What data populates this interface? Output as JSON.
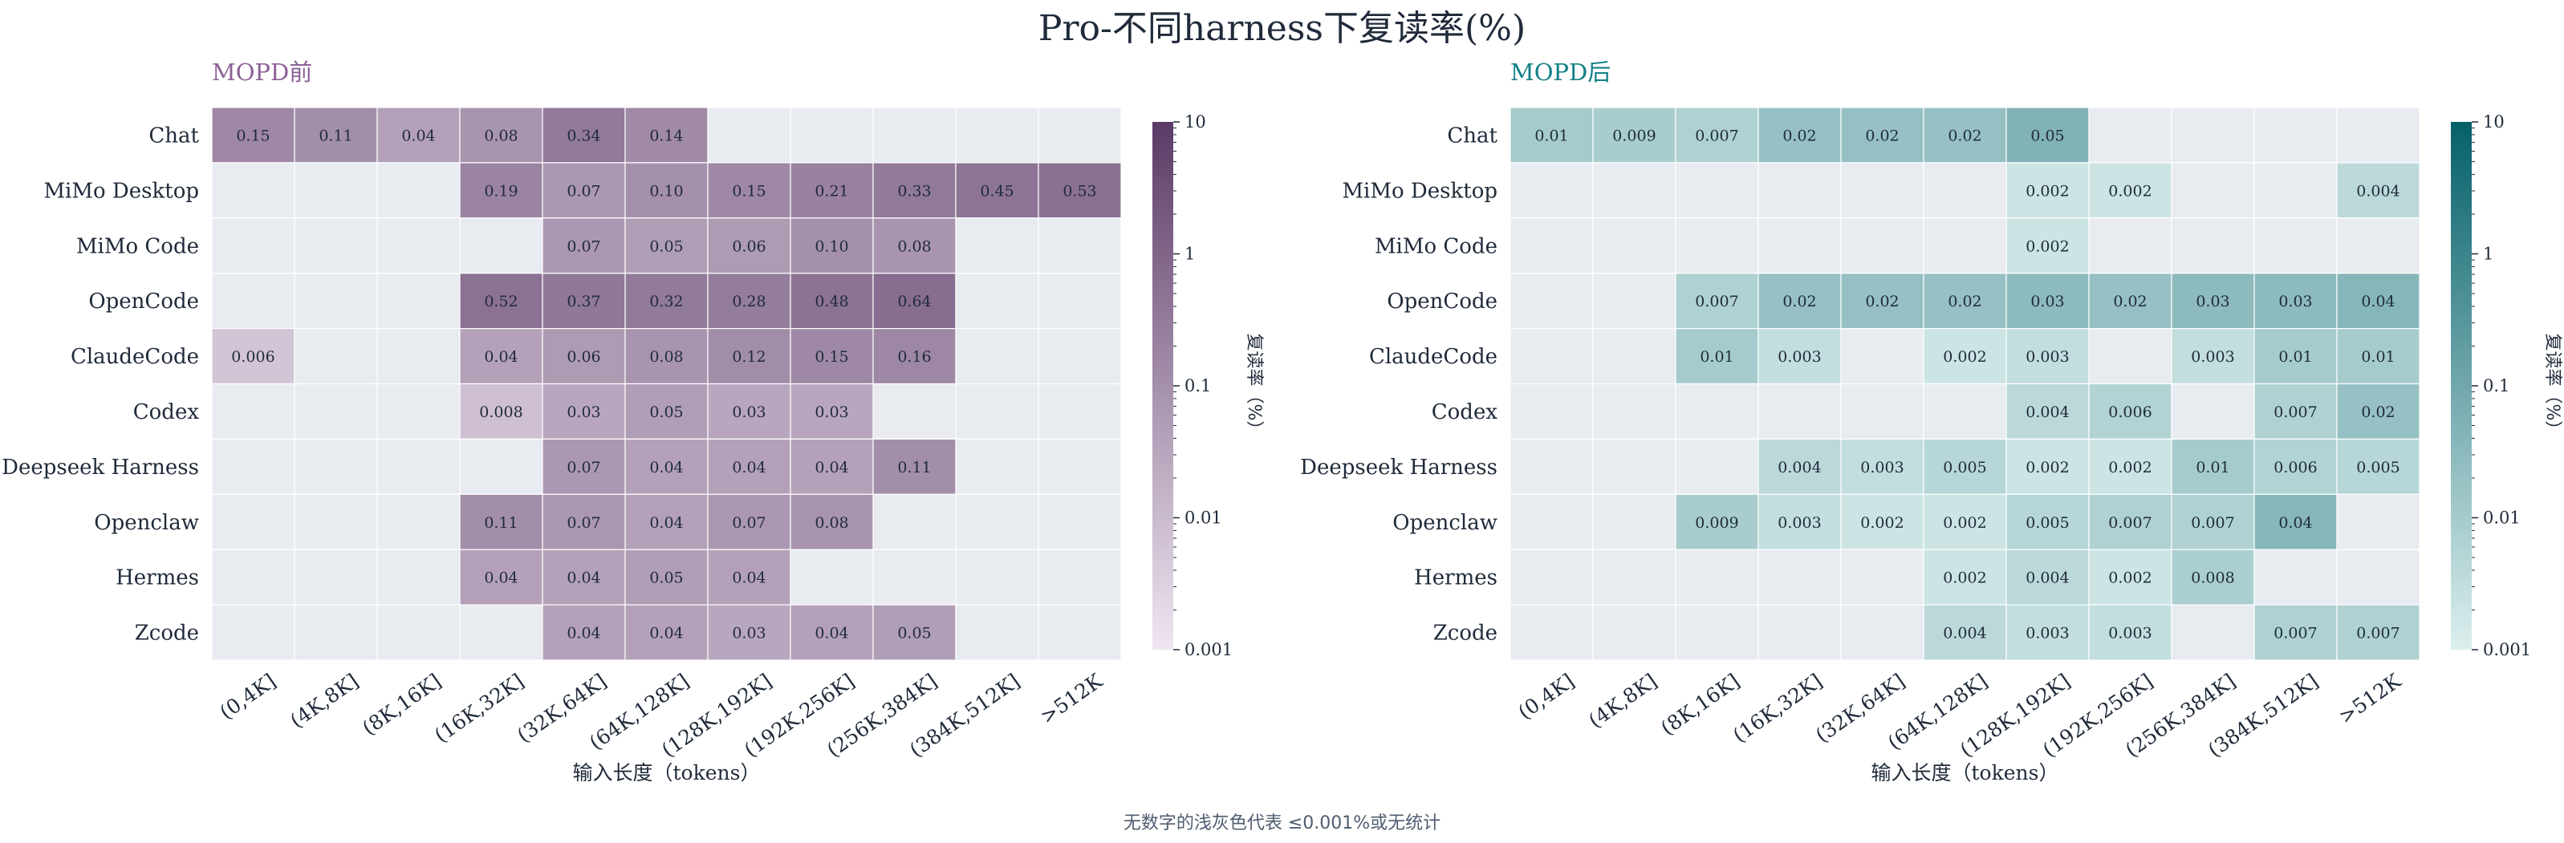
{
  "title": "Pro-不同harness下复读率(%)",
  "footnote": "无数字的浅灰色代表 ≤0.001%或无统计",
  "chart_data": [
    {
      "type": "heatmap",
      "title": "MOPD前",
      "title_color": "#8b6096",
      "xlabel": "输入长度（tokens）",
      "colorbar_label": "复读率（%）",
      "colorbar_ticks": [
        "0.001",
        "0.01",
        "0.1",
        "1",
        "10"
      ],
      "color_scale": "log",
      "vmin": 0.001,
      "vmax": 10,
      "cmap_low": "#efe6f1",
      "cmap_high": "#5b3a66",
      "rows": [
        "Chat",
        "MiMo Desktop",
        "MiMo Code",
        "OpenCode",
        "ClaudeCode",
        "Codex",
        "Deepseek Harness",
        "Openclaw",
        "Hermes",
        "Zcode"
      ],
      "columns": [
        "(0,4K]",
        "(4K,8K]",
        "(8K,16K]",
        "(16K,32K]",
        "(32K,64K]",
        "(64K,128K]",
        "(128K,192K]",
        "(192K,256K]",
        "(256K,384K]",
        "(384K,512K]",
        ">512K"
      ],
      "values": [
        [
          "0.15",
          "0.11",
          "0.04",
          "0.08",
          "0.34",
          "0.14",
          null,
          null,
          null,
          null,
          null
        ],
        [
          null,
          null,
          null,
          "0.19",
          "0.07",
          "0.10",
          "0.15",
          "0.21",
          "0.33",
          "0.45",
          "0.53"
        ],
        [
          null,
          null,
          null,
          null,
          "0.07",
          "0.05",
          "0.06",
          "0.10",
          "0.08",
          null,
          null
        ],
        [
          null,
          null,
          null,
          "0.52",
          "0.37",
          "0.32",
          "0.28",
          "0.48",
          "0.64",
          null,
          null
        ],
        [
          "0.006",
          null,
          null,
          "0.04",
          "0.06",
          "0.08",
          "0.12",
          "0.15",
          "0.16",
          null,
          null
        ],
        [
          null,
          null,
          null,
          "0.008",
          "0.03",
          "0.05",
          "0.03",
          "0.03",
          null,
          null,
          null
        ],
        [
          null,
          null,
          null,
          null,
          "0.07",
          "0.04",
          "0.04",
          "0.04",
          "0.11",
          null,
          null
        ],
        [
          null,
          null,
          null,
          "0.11",
          "0.07",
          "0.04",
          "0.07",
          "0.08",
          null,
          null,
          null
        ],
        [
          null,
          null,
          null,
          "0.04",
          "0.04",
          "0.05",
          "0.04",
          null,
          null,
          null,
          null
        ],
        [
          null,
          null,
          null,
          null,
          "0.04",
          "0.04",
          "0.03",
          "0.04",
          "0.05",
          null,
          null
        ]
      ]
    },
    {
      "type": "heatmap",
      "title": "MOPD后",
      "title_color": "#127f86",
      "xlabel": "输入长度（tokens）",
      "colorbar_label": "复读率（%）",
      "colorbar_ticks": [
        "0.001",
        "0.01",
        "0.1",
        "1",
        "10"
      ],
      "color_scale": "log",
      "vmin": 0.001,
      "vmax": 10,
      "cmap_low": "#dcefee",
      "cmap_high": "#05606a",
      "rows": [
        "Chat",
        "MiMo Desktop",
        "MiMo Code",
        "OpenCode",
        "ClaudeCode",
        "Codex",
        "Deepseek Harness",
        "Openclaw",
        "Hermes",
        "Zcode"
      ],
      "columns": [
        "(0,4K]",
        "(4K,8K]",
        "(8K,16K]",
        "(16K,32K]",
        "(32K,64K]",
        "(64K,128K]",
        "(128K,192K]",
        "(192K,256K]",
        "(256K,384K]",
        "(384K,512K]",
        ">512K"
      ],
      "values": [
        [
          "0.01",
          "0.009",
          "0.007",
          "0.02",
          "0.02",
          "0.02",
          "0.05",
          null,
          null,
          null,
          null
        ],
        [
          null,
          null,
          null,
          null,
          null,
          null,
          "0.002",
          "0.002",
          null,
          null,
          "0.004"
        ],
        [
          null,
          null,
          null,
          null,
          null,
          null,
          "0.002",
          null,
          null,
          null,
          null
        ],
        [
          null,
          null,
          "0.007",
          "0.02",
          "0.02",
          "0.02",
          "0.03",
          "0.02",
          "0.03",
          "0.03",
          "0.04"
        ],
        [
          null,
          null,
          "0.01",
          "0.003",
          null,
          "0.002",
          "0.003",
          null,
          "0.003",
          "0.01",
          "0.01"
        ],
        [
          null,
          null,
          null,
          null,
          null,
          null,
          "0.004",
          "0.006",
          null,
          "0.007",
          "0.02"
        ],
        [
          null,
          null,
          null,
          "0.004",
          "0.003",
          "0.005",
          "0.002",
          "0.002",
          "0.01",
          "0.006",
          "0.005"
        ],
        [
          null,
          null,
          "0.009",
          "0.003",
          "0.002",
          "0.002",
          "0.005",
          "0.007",
          "0.007",
          "0.04",
          null
        ],
        [
          null,
          null,
          null,
          null,
          null,
          "0.002",
          "0.004",
          "0.002",
          "0.008",
          null,
          null
        ],
        [
          null,
          null,
          null,
          null,
          null,
          "0.004",
          "0.003",
          "0.003",
          null,
          "0.007",
          "0.007"
        ]
      ]
    }
  ]
}
